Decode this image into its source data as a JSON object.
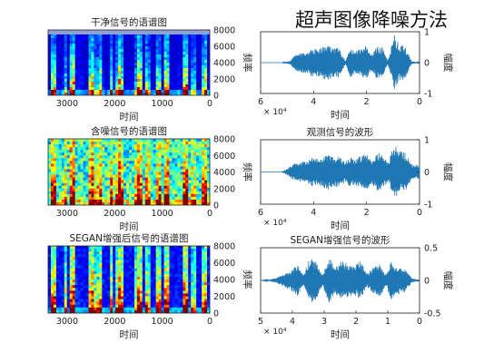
{
  "header": {
    "title": "超声图像降噪方法"
  },
  "colors": {
    "wave": "#1f77b4",
    "axis": "#333333",
    "spec_bg": "#00008f"
  },
  "chart_data": [
    {
      "id": "spec1",
      "type": "heatmap",
      "title": "干净信号的语谱图",
      "xlabel": "时间",
      "ylabel": "频率",
      "xticks": [
        "3000",
        "2000",
        "1000",
        "0"
      ],
      "yticks": [
        "8000",
        "6000",
        "4000",
        "2000",
        "0"
      ],
      "xlim": [
        0,
        3400
      ],
      "ylim": [
        0,
        8000
      ],
      "colormap": "jet",
      "noise": "low"
    },
    {
      "id": "wave1",
      "type": "line",
      "title": "",
      "xlabel": "时间",
      "ylabel": "幅度",
      "exponent": "× 10⁴",
      "xticks": [
        "6",
        "4",
        "2",
        "0"
      ],
      "yticks": [
        "1",
        "0",
        "-1"
      ],
      "xlim": [
        0,
        6
      ],
      "ylim": [
        -1,
        1
      ],
      "noise_floor": 0.02,
      "envelope_x": [
        0,
        0.3,
        0.55,
        0.75,
        0.95,
        1.2,
        1.4,
        1.6,
        1.8,
        2.0,
        2.2,
        2.45,
        2.6,
        2.8,
        3.05,
        3.25,
        3.45,
        3.7,
        3.85,
        4.05,
        4.3,
        4.55,
        4.75,
        4.9,
        5.2,
        6.0
      ],
      "envelope_a": [
        0,
        0.05,
        0.55,
        0.6,
        0.9,
        0.05,
        0.5,
        0.55,
        0.25,
        0.55,
        0.45,
        0.35,
        0.5,
        0.05,
        0.5,
        0.45,
        0.6,
        0.5,
        0.45,
        0.45,
        0.35,
        0.3,
        0.2,
        0.05,
        0.0,
        0.0
      ]
    },
    {
      "id": "spec2",
      "type": "heatmap",
      "title": "含噪信号的语谱图",
      "xlabel": "时间",
      "ylabel": "频率",
      "xticks": [
        "3000",
        "2000",
        "1000",
        "0"
      ],
      "yticks": [
        "8000",
        "6000",
        "4000",
        "2000",
        "0"
      ],
      "xlim": [
        0,
        3400
      ],
      "ylim": [
        0,
        8000
      ],
      "colormap": "jet",
      "noise": "high"
    },
    {
      "id": "wave2",
      "type": "line",
      "title": "观测信号的波形",
      "xlabel": "时间",
      "ylabel": "幅度",
      "exponent": "× 10⁴",
      "xticks": [
        "6",
        "4",
        "2",
        "0"
      ],
      "yticks": [
        "1",
        "0",
        "-1"
      ],
      "xlim": [
        0,
        6
      ],
      "ylim": [
        -1,
        1
      ],
      "noise_floor": 0.28,
      "envelope_x": [
        0,
        0.3,
        0.55,
        0.75,
        0.95,
        1.2,
        1.4,
        1.6,
        1.8,
        2.0,
        2.2,
        2.45,
        2.6,
        2.8,
        3.05,
        3.25,
        3.45,
        3.7,
        3.85,
        4.05,
        4.3,
        4.55,
        4.75,
        4.9,
        5.2,
        6.0
      ],
      "envelope_a": [
        0.15,
        0.25,
        0.6,
        0.65,
        0.85,
        0.3,
        0.55,
        0.6,
        0.35,
        0.55,
        0.5,
        0.4,
        0.5,
        0.3,
        0.5,
        0.45,
        0.55,
        0.45,
        0.4,
        0.45,
        0.35,
        0.3,
        0.25,
        0.15,
        0.0,
        0.0
      ]
    },
    {
      "id": "spec3",
      "type": "heatmap",
      "title": "SEGAN增强后信号的语谱图",
      "xlabel": "时间",
      "ylabel": "频率",
      "xticks": [
        "3000",
        "2000",
        "1000",
        "0"
      ],
      "yticks": [
        "8000",
        "6000",
        "4000",
        "2000",
        "0"
      ],
      "xlim": [
        0,
        3400
      ],
      "ylim": [
        0,
        8000
      ],
      "colormap": "jet",
      "noise": "medium"
    },
    {
      "id": "wave3",
      "type": "line",
      "title": "SEGAN增强信号的波形",
      "xlabel": "时间",
      "ylabel": "幅度",
      "exponent": "× 10⁴",
      "xticks": [
        "5",
        "4",
        "3",
        "2",
        "1",
        "0"
      ],
      "yticks": [
        "0.5",
        "0",
        "-0.5"
      ],
      "xlim": [
        0,
        5
      ],
      "ylim": [
        -0.5,
        0.5
      ],
      "noise_floor": 0.02,
      "envelope_x": [
        0,
        0.25,
        0.45,
        0.7,
        0.9,
        1.05,
        1.25,
        1.45,
        1.65,
        1.85,
        2.05,
        2.25,
        2.45,
        2.65,
        2.85,
        3.05,
        3.25,
        3.45,
        3.65,
        3.85,
        4.05,
        4.25,
        4.5,
        4.75,
        5.0
      ],
      "envelope_a": [
        0,
        0.04,
        0.18,
        0.22,
        0.3,
        0.08,
        0.25,
        0.2,
        0.1,
        0.3,
        0.22,
        0.25,
        0.3,
        0.2,
        0.35,
        0.08,
        0.3,
        0.35,
        0.08,
        0.25,
        0.15,
        0.1,
        0.04,
        0.01,
        0
      ]
    }
  ]
}
